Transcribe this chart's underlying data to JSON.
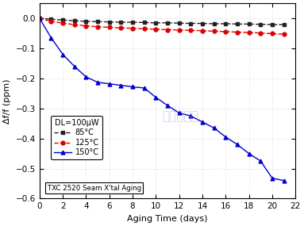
{
  "xlabel": "Aging Time (days)",
  "ylabel": "Δf/f (ppm)",
  "xlim": [
    0,
    22
  ],
  "ylim": [
    -0.6,
    0.05
  ],
  "yticks": [
    0.0,
    -0.1,
    -0.2,
    -0.3,
    -0.4,
    -0.5,
    -0.6
  ],
  "xticks": [
    0,
    2,
    4,
    6,
    8,
    10,
    12,
    14,
    16,
    18,
    20,
    22
  ],
  "watermark": "金洛鑫电子",
  "legend_title": "DL=100μW",
  "legend_subtitle": "TXC 2520 Seam X'tal Aging",
  "series": [
    {
      "label": "85°C",
      "color": "#222222",
      "marker": "s",
      "linestyle": "--",
      "x": [
        0,
        1,
        2,
        3,
        4,
        5,
        6,
        7,
        8,
        9,
        10,
        11,
        12,
        13,
        14,
        15,
        16,
        17,
        18,
        19,
        20,
        21
      ],
      "y": [
        0.0,
        -0.003,
        -0.006,
        -0.008,
        -0.01,
        -0.011,
        -0.012,
        -0.013,
        -0.013,
        -0.014,
        -0.015,
        -0.015,
        -0.016,
        -0.017,
        -0.017,
        -0.018,
        -0.018,
        -0.019,
        -0.019,
        -0.02,
        -0.021,
        -0.021
      ]
    },
    {
      "label": "125°C",
      "color": "#dd0000",
      "marker": "o",
      "linestyle": "--",
      "x": [
        0,
        1,
        2,
        3,
        4,
        5,
        6,
        7,
        8,
        9,
        10,
        11,
        12,
        13,
        14,
        15,
        16,
        17,
        18,
        19,
        20,
        21
      ],
      "y": [
        0.0,
        -0.01,
        -0.016,
        -0.021,
        -0.025,
        -0.028,
        -0.03,
        -0.032,
        -0.033,
        -0.035,
        -0.036,
        -0.038,
        -0.039,
        -0.04,
        -0.041,
        -0.043,
        -0.044,
        -0.046,
        -0.047,
        -0.049,
        -0.051,
        -0.053
      ]
    },
    {
      "label": "150°C",
      "color": "#0000cc",
      "marker": "^",
      "linestyle": "-",
      "x": [
        0,
        1,
        2,
        3,
        4,
        5,
        6,
        7,
        8,
        9,
        10,
        11,
        12,
        13,
        14,
        15,
        16,
        17,
        18,
        19,
        20,
        21
      ],
      "y": [
        0.0,
        -0.065,
        -0.12,
        -0.16,
        -0.195,
        -0.213,
        -0.218,
        -0.223,
        -0.228,
        -0.232,
        -0.263,
        -0.29,
        -0.315,
        -0.325,
        -0.345,
        -0.365,
        -0.395,
        -0.42,
        -0.45,
        -0.475,
        -0.532,
        -0.54
      ]
    }
  ]
}
